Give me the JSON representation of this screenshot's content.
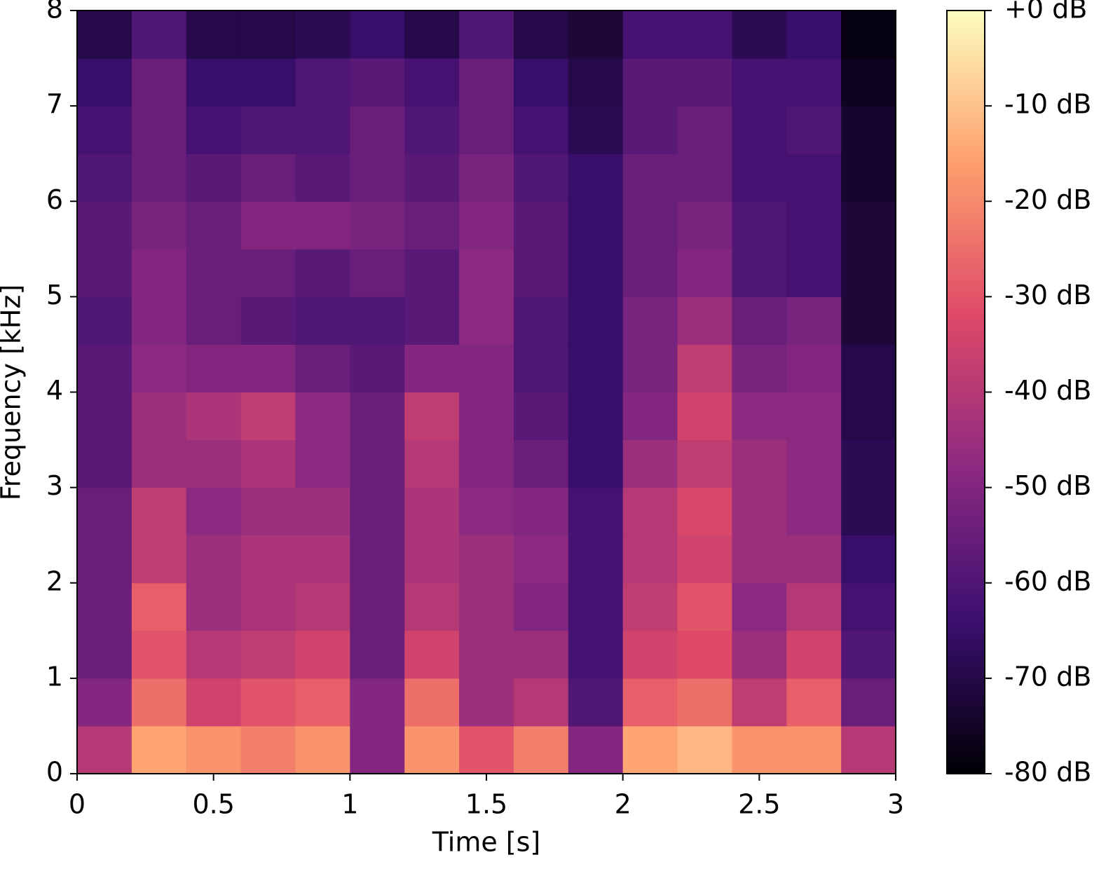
{
  "chart_data": {
    "type": "spectrogram",
    "xlabel": "Time [s]",
    "ylabel": "Frequency [kHz]",
    "xlim": [
      0,
      3
    ],
    "ylim": [
      0,
      8
    ],
    "xticks": [
      0,
      0.5,
      1,
      1.5,
      2,
      2.5,
      3
    ],
    "yticks": [
      0,
      1,
      2,
      3,
      4,
      5,
      6,
      7,
      8
    ],
    "xbins": [
      0,
      0.2,
      0.4,
      0.6,
      0.8,
      1,
      1.2,
      1.4,
      1.6,
      1.8,
      2,
      2.2,
      2.4,
      2.6,
      2.8,
      3
    ],
    "ybins": [
      0,
      0.5,
      1,
      1.5,
      2,
      2.5,
      3,
      3.5,
      4,
      4.5,
      5,
      5.5,
      6,
      6.5,
      7,
      7.5,
      8
    ],
    "z": [
      [
        -40,
        -15,
        -18,
        -22,
        -18,
        -50,
        -18,
        -30,
        -22,
        -50,
        -15,
        -12,
        -18,
        -18,
        -40
      ],
      [
        -50,
        -25,
        -35,
        -30,
        -28,
        -50,
        -25,
        -45,
        -40,
        -60,
        -28,
        -25,
        -38,
        -28,
        -55
      ],
      [
        -55,
        -30,
        -40,
        -38,
        -35,
        -55,
        -35,
        -45,
        -45,
        -62,
        -35,
        -32,
        -45,
        -35,
        -60
      ],
      [
        -55,
        -28,
        -45,
        -42,
        -40,
        -55,
        -40,
        -45,
        -50,
        -62,
        -38,
        -30,
        -48,
        -40,
        -62
      ],
      [
        -55,
        -38,
        -45,
        -42,
        -42,
        -55,
        -42,
        -45,
        -48,
        -62,
        -40,
        -35,
        -45,
        -45,
        -65
      ],
      [
        -55,
        -38,
        -48,
        -45,
        -45,
        -55,
        -42,
        -48,
        -50,
        -62,
        -40,
        -33,
        -45,
        -48,
        -68
      ],
      [
        -58,
        -45,
        -45,
        -42,
        -48,
        -55,
        -40,
        -50,
        -55,
        -65,
        -45,
        -38,
        -45,
        -48,
        -68
      ],
      [
        -58,
        -45,
        -42,
        -38,
        -48,
        -55,
        -38,
        -50,
        -58,
        -65,
        -50,
        -35,
        -48,
        -48,
        -70
      ],
      [
        -58,
        -48,
        -50,
        -50,
        -55,
        -58,
        -50,
        -50,
        -60,
        -65,
        -52,
        -38,
        -52,
        -50,
        -70
      ],
      [
        -60,
        -50,
        -55,
        -58,
        -60,
        -60,
        -58,
        -48,
        -60,
        -65,
        -52,
        -45,
        -55,
        -52,
        -72
      ],
      [
        -58,
        -50,
        -55,
        -55,
        -58,
        -55,
        -58,
        -48,
        -58,
        -65,
        -55,
        -50,
        -60,
        -62,
        -72
      ],
      [
        -58,
        -52,
        -55,
        -50,
        -50,
        -52,
        -55,
        -50,
        -58,
        -65,
        -55,
        -52,
        -60,
        -62,
        -72
      ],
      [
        -60,
        -55,
        -58,
        -55,
        -58,
        -55,
        -58,
        -52,
        -60,
        -65,
        -55,
        -55,
        -62,
        -62,
        -74
      ],
      [
        -62,
        -55,
        -62,
        -60,
        -60,
        -55,
        -60,
        -55,
        -62,
        -68,
        -58,
        -55,
        -62,
        -60,
        -74
      ],
      [
        -65,
        -55,
        -65,
        -65,
        -60,
        -58,
        -62,
        -55,
        -65,
        -70,
        -58,
        -58,
        -62,
        -62,
        -76
      ],
      [
        -70,
        -60,
        -70,
        -70,
        -68,
        -65,
        -70,
        -60,
        -70,
        -72,
        -62,
        -62,
        -68,
        -65,
        -78
      ]
    ],
    "clim": [
      -80,
      0
    ],
    "cticks": [
      {
        "value": 0,
        "label": "+0 dB"
      },
      {
        "value": -10,
        "label": "-10 dB"
      },
      {
        "value": -20,
        "label": "-20 dB"
      },
      {
        "value": -30,
        "label": "-30 dB"
      },
      {
        "value": -40,
        "label": "-40 dB"
      },
      {
        "value": -50,
        "label": "-50 dB"
      },
      {
        "value": -60,
        "label": "-60 dB"
      },
      {
        "value": -70,
        "label": "-70 dB"
      },
      {
        "value": -80,
        "label": "-80 dB"
      }
    ],
    "colormap": [
      "#000004",
      "#3b0f70",
      "#8c2981",
      "#de4968",
      "#fe9f6d",
      "#fcfdbf"
    ]
  }
}
